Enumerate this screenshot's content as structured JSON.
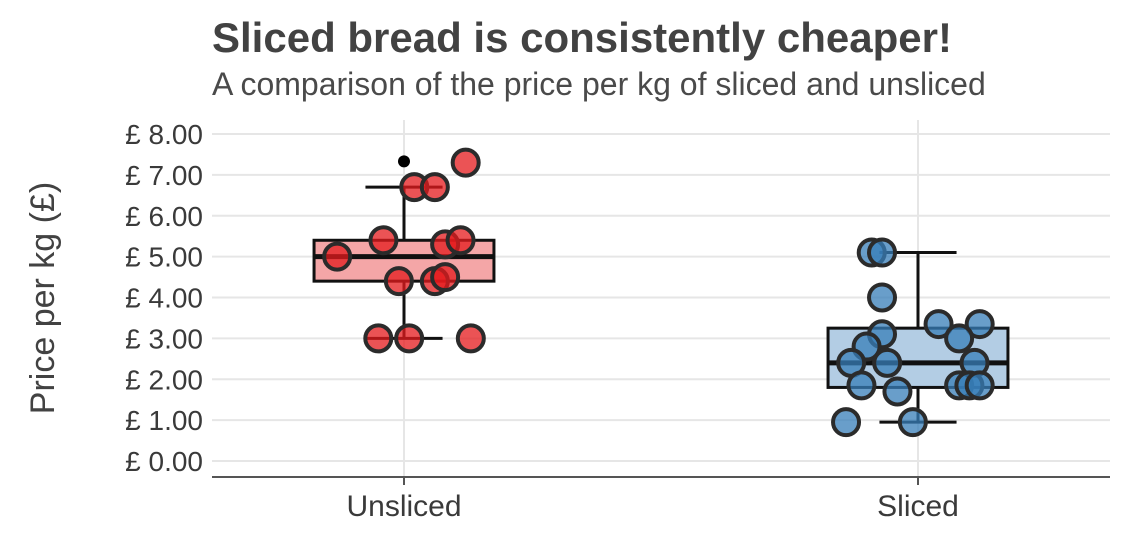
{
  "chart_data": {
    "type": "boxplot",
    "title": "Sliced bread is consistently cheaper!",
    "subtitle": "A comparison of the price per kg of sliced and unsliced",
    "xlabel": "",
    "ylabel": "Price per kg (£)",
    "ylim": [
      -0.3,
      8.3
    ],
    "yticks": [
      0,
      1,
      2,
      3,
      4,
      5,
      6,
      7,
      8
    ],
    "ytick_labels": [
      "£ 0.00",
      "£ 1.00",
      "£ 2.00",
      "£ 3.00",
      "£ 4.00",
      "£ 5.00",
      "£ 6.00",
      "£ 7.00",
      "£ 8.00"
    ],
    "grid": true,
    "categories": [
      "Unsliced",
      "Sliced"
    ],
    "series": [
      {
        "category": "Unsliced",
        "color": "#e41a1c",
        "box_fill": "#f4a6a7",
        "stats": {
          "whisker_low": 3.0,
          "q1": 4.4,
          "median": 5.0,
          "q3": 5.4,
          "whisker_high": 6.7
        },
        "outliers": [
          7.33
        ],
        "points": [
          {
            "x": -0.13,
            "y": 5.0
          },
          {
            "x": -0.04,
            "y": 5.4
          },
          {
            "x": -0.01,
            "y": 4.4
          },
          {
            "x": 0.02,
            "y": 6.7
          },
          {
            "x": 0.06,
            "y": 6.7
          },
          {
            "x": 0.06,
            "y": 4.4
          },
          {
            "x": 0.08,
            "y": 4.5
          },
          {
            "x": 0.08,
            "y": 5.3
          },
          {
            "x": 0.11,
            "y": 5.4
          },
          {
            "x": 0.12,
            "y": 7.3
          },
          {
            "x": -0.05,
            "y": 3.0
          },
          {
            "x": 0.01,
            "y": 3.0
          },
          {
            "x": 0.13,
            "y": 3.0
          }
        ]
      },
      {
        "category": "Sliced",
        "color": "#377eb8",
        "box_fill": "#b3cde4",
        "stats": {
          "whisker_low": 0.95,
          "q1": 1.8,
          "median": 2.4,
          "q3": 3.25,
          "whisker_high": 5.1
        },
        "outliers": [],
        "points": [
          {
            "x": -0.09,
            "y": 5.1
          },
          {
            "x": -0.07,
            "y": 5.1
          },
          {
            "x": -0.07,
            "y": 4.0
          },
          {
            "x": -0.07,
            "y": 3.1
          },
          {
            "x": -0.1,
            "y": 2.8
          },
          {
            "x": -0.13,
            "y": 2.4
          },
          {
            "x": -0.06,
            "y": 2.4
          },
          {
            "x": -0.11,
            "y": 1.85
          },
          {
            "x": -0.04,
            "y": 1.7
          },
          {
            "x": 0.04,
            "y": 3.35
          },
          {
            "x": 0.12,
            "y": 3.35
          },
          {
            "x": 0.08,
            "y": 3.0
          },
          {
            "x": 0.11,
            "y": 2.4
          },
          {
            "x": 0.08,
            "y": 1.85
          },
          {
            "x": 0.1,
            "y": 1.85
          },
          {
            "x": 0.12,
            "y": 1.85
          },
          {
            "x": -0.14,
            "y": 0.95
          },
          {
            "x": -0.01,
            "y": 0.95
          }
        ]
      }
    ]
  }
}
